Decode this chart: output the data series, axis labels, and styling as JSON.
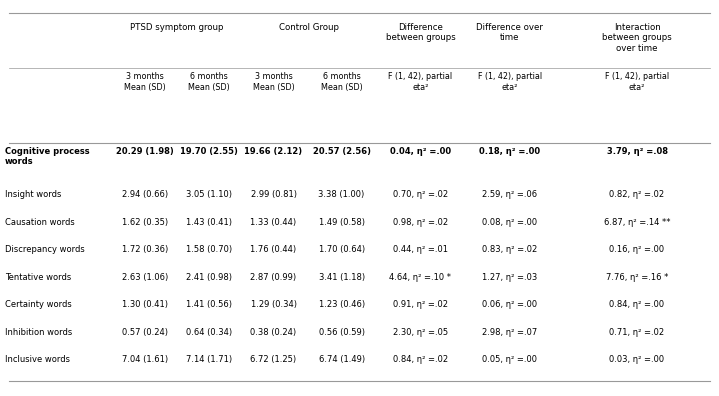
{
  "col_headers_line1": [
    "",
    "PTSD symptom group",
    "",
    "Control Group",
    "",
    "Difference\nbetween groups",
    "Difference over\ntime",
    "Interaction\nbetween groups\nover time"
  ],
  "col_headers_line2": [
    "",
    "3 months\nMean (SD)",
    "6 months\nMean (SD)",
    "3 months\nMean (SD)",
    "6 months\nMean (SD)",
    "F (1, 42), partial\neta²",
    "F (1, 42), partial\neta²",
    "F (1, 42), partial\neta²"
  ],
  "rows": [
    [
      "Cognitive process\nwords",
      "20.29 (1.98)",
      "19.70 (2.55)",
      "19.66 (2.12)",
      "20.57 (2.56)",
      "0.04, η² =.00",
      "0.18, η² =.00",
      "3.79, η² =.08"
    ],
    [
      "Insight words",
      "2.94 (0.66)",
      "3.05 (1.10)",
      "2.99 (0.81)",
      "3.38 (1.00)",
      "0.70, η² =.02",
      "2.59, η² =.06",
      "0.82, η² =.02"
    ],
    [
      "Causation words",
      "1.62 (0.35)",
      "1.43 (0.41)",
      "1.33 (0.44)",
      "1.49 (0.58)",
      "0.98, η² =.02",
      "0.08, η² =.00",
      "6.87, η² =.14 **"
    ],
    [
      "Discrepancy words",
      "1.72 (0.36)",
      "1.58 (0.70)",
      "1.76 (0.44)",
      "1.70 (0.64)",
      "0.44, η² =.01",
      "0.83, η² =.02",
      "0.16, η² =.00"
    ],
    [
      "Tentative words",
      "2.63 (1.06)",
      "2.41 (0.98)",
      "2.87 (0.99)",
      "3.41 (1.18)",
      "4.64, η² =.10 *",
      "1.27, η² =.03",
      "7.76, η² =.16 *"
    ],
    [
      "Certainty words",
      "1.30 (0.41)",
      "1.41 (0.56)",
      "1.29 (0.34)",
      "1.23 (0.46)",
      "0.91, η² =.02",
      "0.06, η² =.00",
      "0.84, η² =.00"
    ],
    [
      "Inhibition words",
      "0.57 (0.24)",
      "0.64 (0.34)",
      "0.38 (0.24)",
      "0.56 (0.59)",
      "2.30, η² =.05",
      "2.98, η² =.07",
      "0.71, η² =.02"
    ],
    [
      "Inclusive words",
      "7.04 (1.61)",
      "7.14 (1.71)",
      "6.72 (1.25)",
      "6.74 (1.49)",
      "0.84, η² =.02",
      "0.05, η² =.00",
      "0.03, η² =.00"
    ]
  ],
  "bold_rows": [
    0
  ],
  "bg_color": "#ffffff",
  "text_color": "#000000",
  "line_color": "#999999"
}
